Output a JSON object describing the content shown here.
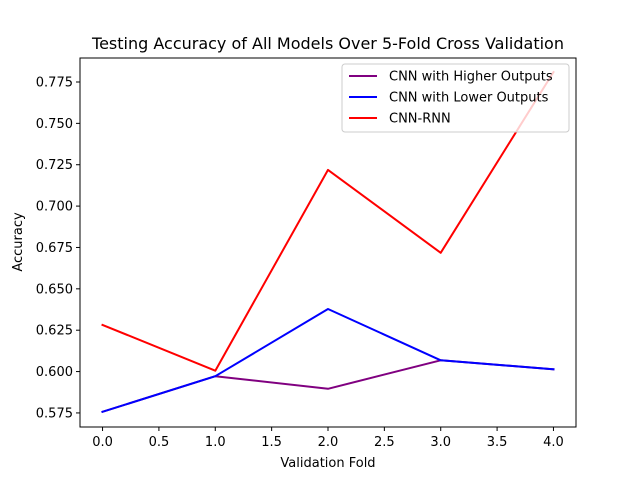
{
  "chart_data": {
    "type": "line",
    "title": "Testing Accuracy of All Models Over 5-Fold Cross Validation",
    "xlabel": "Validation Fold",
    "ylabel": "Accuracy",
    "xlim": [
      -0.2,
      4.2
    ],
    "ylim": [
      0.5665,
      0.7895
    ],
    "xticks": [
      0.0,
      0.5,
      1.0,
      1.5,
      2.0,
      2.5,
      3.0,
      3.5,
      4.0
    ],
    "xtick_labels": [
      "0.0",
      "0.5",
      "1.0",
      "1.5",
      "2.0",
      "2.5",
      "3.0",
      "3.5",
      "4.0"
    ],
    "yticks": [
      0.575,
      0.6,
      0.625,
      0.65,
      0.675,
      0.7,
      0.725,
      0.75,
      0.775
    ],
    "ytick_labels": [
      "0.575",
      "0.600",
      "0.625",
      "0.650",
      "0.675",
      "0.700",
      "0.725",
      "0.750",
      "0.775"
    ],
    "grid": false,
    "legend_position": "top-right",
    "x": [
      0,
      1,
      2,
      3,
      4
    ],
    "series": [
      {
        "name": "CNN with Higher Outputs",
        "color": "#800080",
        "values": [
          0.5757,
          0.5972,
          0.5896,
          0.6068,
          0.6014
        ]
      },
      {
        "name": "CNN with Lower Outputs",
        "color": "#0000ff",
        "values": [
          0.5757,
          0.5972,
          0.6378,
          0.6068,
          0.6014
        ]
      },
      {
        "name": "CNN-RNN",
        "color": "#ff0000",
        "values": [
          0.6282,
          0.6005,
          0.7219,
          0.6718,
          0.781
        ]
      }
    ]
  }
}
